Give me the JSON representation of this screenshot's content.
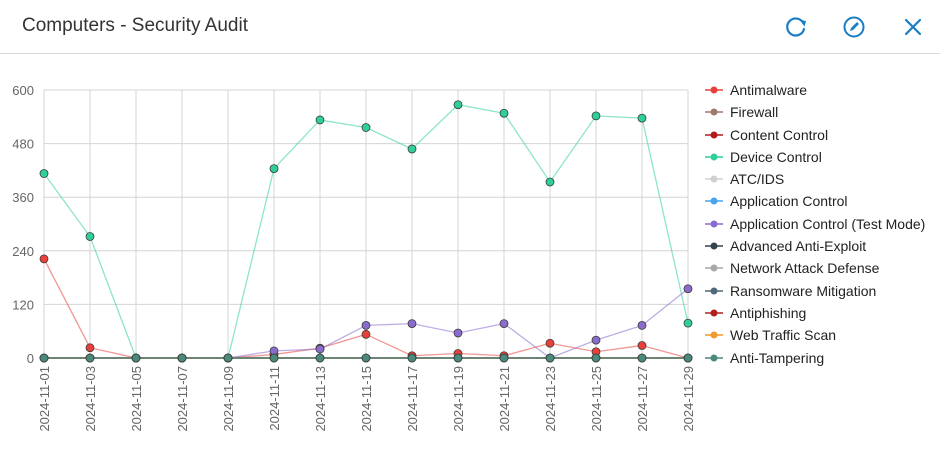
{
  "header": {
    "title": "Computers - Security Audit",
    "icons": [
      "refresh-icon",
      "edit-icon",
      "close-icon"
    ],
    "icon_color": "#1a7dc4"
  },
  "chart_data": {
    "type": "line",
    "title": "",
    "xlabel": "",
    "ylabel": "",
    "ylim": [
      0,
      600
    ],
    "yticks": [
      0,
      120,
      240,
      360,
      480,
      600
    ],
    "grid": true,
    "legend": "right",
    "categories": [
      "2024-11-01",
      "2024-11-03",
      "2024-11-05",
      "2024-11-07",
      "2024-11-09",
      "2024-11-11",
      "2024-11-13",
      "2024-11-15",
      "2024-11-17",
      "2024-11-19",
      "2024-11-21",
      "2024-11-23",
      "2024-11-25",
      "2024-11-27",
      "2024-11-29"
    ],
    "series": [
      {
        "name": "Antimalware",
        "color": "#e8403a",
        "marker": true,
        "values": [
          222,
          23,
          0,
          0,
          0,
          8,
          22,
          53,
          5,
          10,
          5,
          33,
          14,
          28,
          0
        ]
      },
      {
        "name": "Firewall",
        "color": "#a0786c",
        "marker": false,
        "values": [
          0,
          0,
          0,
          0,
          0,
          0,
          0,
          0,
          0,
          0,
          0,
          0,
          0,
          0,
          0
        ]
      },
      {
        "name": "Content Control",
        "color": "#b01c1c",
        "marker": false,
        "values": [
          0,
          0,
          0,
          0,
          0,
          0,
          0,
          0,
          0,
          0,
          0,
          0,
          0,
          0,
          0
        ]
      },
      {
        "name": "Device Control",
        "color": "#2fcf9c",
        "marker": true,
        "values": [
          413,
          272,
          0,
          0,
          0,
          424,
          533,
          516,
          468,
          567,
          548,
          394,
          542,
          537,
          78
        ]
      },
      {
        "name": "ATC/IDS",
        "color": "#d0d0d0",
        "marker": false,
        "values": [
          0,
          0,
          0,
          0,
          0,
          0,
          0,
          0,
          0,
          0,
          0,
          0,
          0,
          0,
          0
        ]
      },
      {
        "name": "Application Control",
        "color": "#4aa3ee",
        "marker": false,
        "values": [
          0,
          0,
          0,
          0,
          0,
          0,
          0,
          0,
          0,
          0,
          0,
          0,
          0,
          0,
          0
        ]
      },
      {
        "name": "Application Control (Test Mode)",
        "color": "#8a6ccc",
        "marker": true,
        "values": [
          0,
          0,
          0,
          0,
          0,
          16,
          20,
          73,
          77,
          56,
          77,
          0,
          40,
          73,
          155
        ]
      },
      {
        "name": "Advanced Anti-Exploit",
        "color": "#34444f",
        "marker": true,
        "values": [
          0,
          0,
          0,
          0,
          0,
          0,
          0,
          0,
          0,
          0,
          0,
          0,
          0,
          0,
          0
        ]
      },
      {
        "name": "Network Attack Defense",
        "color": "#a8a8a8",
        "marker": false,
        "values": [
          0,
          0,
          0,
          0,
          0,
          0,
          0,
          0,
          0,
          0,
          0,
          0,
          0,
          0,
          0
        ]
      },
      {
        "name": "Ransomware Mitigation",
        "color": "#4f6a78",
        "marker": false,
        "values": [
          0,
          0,
          0,
          0,
          0,
          0,
          0,
          0,
          0,
          0,
          0,
          0,
          0,
          0,
          0
        ]
      },
      {
        "name": "Antiphishing",
        "color": "#b02020",
        "marker": false,
        "values": [
          0,
          0,
          0,
          0,
          0,
          0,
          0,
          0,
          0,
          0,
          0,
          0,
          0,
          0,
          0
        ]
      },
      {
        "name": "Web Traffic Scan",
        "color": "#f29a2e",
        "marker": false,
        "values": [
          0,
          0,
          0,
          0,
          0,
          0,
          0,
          0,
          0,
          0,
          0,
          0,
          0,
          0,
          0
        ]
      },
      {
        "name": "Anti-Tampering",
        "color": "#4a8a7c",
        "marker": true,
        "values": [
          0,
          0,
          0,
          0,
          0,
          0,
          0,
          0,
          0,
          0,
          0,
          0,
          0,
          0,
          0
        ]
      }
    ]
  }
}
